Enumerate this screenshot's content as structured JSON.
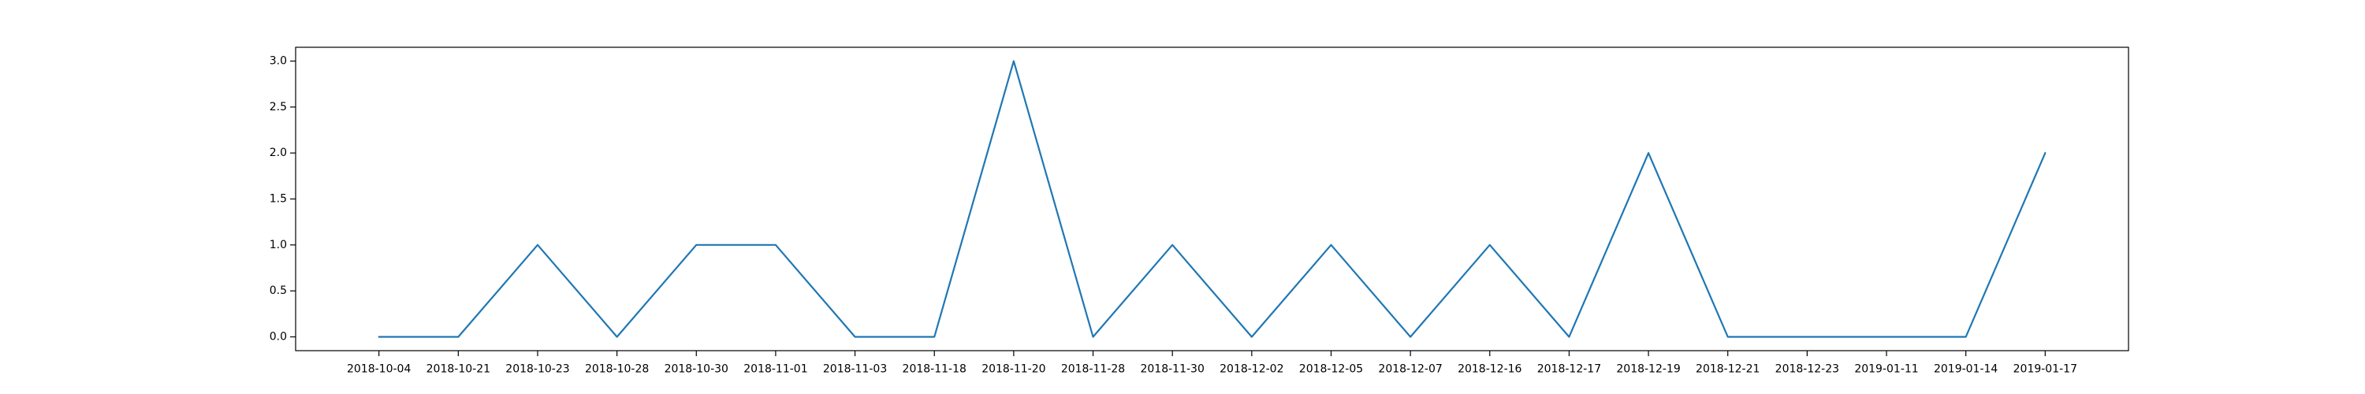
{
  "chart_data": {
    "type": "line",
    "title": "",
    "xlabel": "",
    "ylabel": "",
    "grid": false,
    "x": [
      "2018-10-04",
      "2018-10-21",
      "2018-10-23",
      "2018-10-28",
      "2018-10-30",
      "2018-11-01",
      "2018-11-03",
      "2018-11-18",
      "2018-11-20",
      "2018-11-28",
      "2018-11-30",
      "2018-12-02",
      "2018-12-05",
      "2018-12-07",
      "2018-12-16",
      "2018-12-17",
      "2018-12-19",
      "2018-12-21",
      "2018-12-23",
      "2019-01-11",
      "2019-01-14",
      "2019-01-17"
    ],
    "series": [
      {
        "color": "#1f77b4",
        "values": [
          0,
          0,
          1,
          0,
          1,
          1,
          0,
          0,
          3,
          0,
          1,
          0,
          1,
          0,
          1,
          0,
          2,
          0,
          0,
          0,
          0,
          2
        ]
      }
    ],
    "ylim": [
      -0.15,
      3.15
    ],
    "yticks": [
      {
        "value": 0.0,
        "label": "0.0"
      },
      {
        "value": 0.5,
        "label": "0.5"
      },
      {
        "value": 1.0,
        "label": "1.0"
      },
      {
        "value": 1.5,
        "label": "1.5"
      },
      {
        "value": 2.0,
        "label": "2.0"
      },
      {
        "value": 2.5,
        "label": "2.5"
      },
      {
        "value": 3.0,
        "label": "3.0"
      }
    ]
  }
}
